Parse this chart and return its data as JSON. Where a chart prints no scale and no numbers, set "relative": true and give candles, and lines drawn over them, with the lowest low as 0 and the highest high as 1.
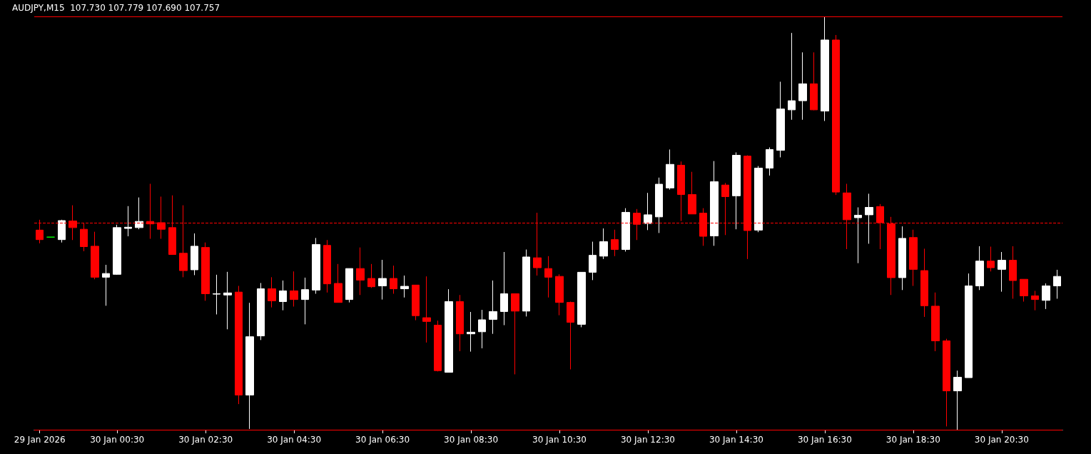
{
  "chart_data": {
    "type": "candlestick",
    "title": "AUDJPY,M15  107.730 107.779 107.690 107.757",
    "relative": true,
    "categories": [
      "29 Jan 2026",
      null,
      null,
      null,
      null,
      null,
      null,
      "30 Jan 00:30",
      null,
      null,
      null,
      null,
      null,
      null,
      null,
      "30 Jan 02:30",
      null,
      null,
      null,
      null,
      null,
      null,
      null,
      "30 Jan 04:30",
      null,
      null,
      null,
      null,
      null,
      null,
      null,
      "30 Jan 06:30",
      null,
      null,
      null,
      null,
      null,
      null,
      null,
      "30 Jan 08:30",
      null,
      null,
      null,
      null,
      null,
      null,
      null,
      "30 Jan 10:30",
      null,
      null,
      null,
      null,
      null,
      null,
      null,
      "30 Jan 12:30",
      null,
      null,
      null,
      null,
      null,
      null,
      null,
      "30 Jan 14:30",
      null,
      null,
      null,
      null,
      null,
      null,
      null,
      "30 Jan 16:30",
      null,
      null,
      null,
      null,
      null,
      null,
      null,
      "30 Jan 18:30",
      null,
      null,
      null,
      null,
      null,
      null,
      null,
      "30 Jan 20:30",
      null,
      null,
      null,
      null,
      null
    ],
    "ohlc": [
      [
        0.483,
        0.508,
        0.451,
        0.46
      ],
      [
        0.466,
        0.466,
        0.466,
        0.466
      ],
      [
        0.46,
        0.508,
        0.453,
        0.506
      ],
      [
        0.505,
        0.543,
        0.459,
        0.489
      ],
      [
        0.485,
        0.501,
        0.432,
        0.443
      ],
      [
        0.444,
        0.479,
        0.364,
        0.369
      ],
      [
        0.369,
        0.399,
        0.3,
        0.378
      ],
      [
        0.376,
        0.496,
        0.375,
        0.489
      ],
      [
        0.487,
        0.541,
        0.468,
        0.49
      ],
      [
        0.489,
        0.562,
        0.485,
        0.504
      ],
      [
        0.504,
        0.595,
        0.462,
        0.498
      ],
      [
        0.501,
        0.564,
        0.462,
        0.485
      ],
      [
        0.489,
        0.567,
        0.424,
        0.424
      ],
      [
        0.427,
        0.543,
        0.369,
        0.385
      ],
      [
        0.387,
        0.475,
        0.374,
        0.444
      ],
      [
        0.441,
        0.453,
        0.312,
        0.329
      ],
      [
        0.328,
        0.375,
        0.279,
        0.329
      ],
      [
        0.326,
        0.382,
        0.243,
        0.331
      ],
      [
        0.333,
        0.348,
        0.062,
        0.084
      ],
      [
        0.084,
        0.307,
        0.002,
        0.225
      ],
      [
        0.227,
        0.355,
        0.217,
        0.341
      ],
      [
        0.341,
        0.369,
        0.296,
        0.312
      ],
      [
        0.31,
        0.361,
        0.289,
        0.336
      ],
      [
        0.336,
        0.383,
        0.298,
        0.315
      ],
      [
        0.315,
        0.368,
        0.255,
        0.339
      ],
      [
        0.338,
        0.464,
        0.329,
        0.448
      ],
      [
        0.446,
        0.459,
        0.332,
        0.353
      ],
      [
        0.354,
        0.401,
        0.308,
        0.308
      ],
      [
        0.315,
        0.39,
        0.308,
        0.39
      ],
      [
        0.39,
        0.441,
        0.326,
        0.362
      ],
      [
        0.366,
        0.401,
        0.343,
        0.346
      ],
      [
        0.348,
        0.411,
        0.315,
        0.366
      ],
      [
        0.366,
        0.397,
        0.329,
        0.341
      ],
      [
        0.341,
        0.373,
        0.32,
        0.347
      ],
      [
        0.35,
        0.35,
        0.265,
        0.276
      ],
      [
        0.271,
        0.371,
        0.211,
        0.262
      ],
      [
        0.253,
        0.264,
        0.141,
        0.143
      ],
      [
        0.139,
        0.34,
        0.139,
        0.31
      ],
      [
        0.31,
        0.326,
        0.19,
        0.232
      ],
      [
        0.232,
        0.285,
        0.189,
        0.236
      ],
      [
        0.237,
        0.29,
        0.197,
        0.266
      ],
      [
        0.267,
        0.361,
        0.232,
        0.286
      ],
      [
        0.286,
        0.43,
        0.253,
        0.329
      ],
      [
        0.329,
        0.329,
        0.134,
        0.287
      ],
      [
        0.287,
        0.436,
        0.274,
        0.418
      ],
      [
        0.416,
        0.525,
        0.373,
        0.392
      ],
      [
        0.39,
        0.42,
        0.32,
        0.369
      ],
      [
        0.371,
        0.376,
        0.277,
        0.308
      ],
      [
        0.308,
        0.31,
        0.146,
        0.26
      ],
      [
        0.255,
        0.381,
        0.248,
        0.381
      ],
      [
        0.381,
        0.455,
        0.362,
        0.422
      ],
      [
        0.42,
        0.487,
        0.413,
        0.455
      ],
      [
        0.46,
        0.484,
        0.42,
        0.436
      ],
      [
        0.436,
        0.536,
        0.431,
        0.526
      ],
      [
        0.524,
        0.534,
        0.459,
        0.497
      ],
      [
        0.499,
        0.573,
        0.483,
        0.52
      ],
      [
        0.515,
        0.61,
        0.476,
        0.594
      ],
      [
        0.585,
        0.678,
        0.581,
        0.642
      ],
      [
        0.64,
        0.649,
        0.505,
        0.569
      ],
      [
        0.569,
        0.624,
        0.522,
        0.522
      ],
      [
        0.524,
        0.536,
        0.445,
        0.468
      ],
      [
        0.469,
        0.65,
        0.445,
        0.6
      ],
      [
        0.592,
        0.597,
        0.471,
        0.564
      ],
      [
        0.566,
        0.671,
        0.485,
        0.664
      ],
      [
        0.662,
        0.664,
        0.413,
        0.482
      ],
      [
        0.483,
        0.638,
        0.478,
        0.633
      ],
      [
        0.633,
        0.683,
        0.615,
        0.678
      ],
      [
        0.676,
        0.842,
        0.659,
        0.776
      ],
      [
        0.774,
        0.96,
        0.75,
        0.796
      ],
      [
        0.796,
        0.913,
        0.75,
        0.837
      ],
      [
        0.837,
        0.913,
        0.773,
        0.774
      ],
      [
        0.771,
        1,
        0.747,
        0.943
      ],
      [
        0.943,
        0.955,
        0.568,
        0.575
      ],
      [
        0.573,
        0.595,
        0.437,
        0.508
      ],
      [
        0.513,
        0.538,
        0.403,
        0.519
      ],
      [
        0.52,
        0.571,
        0.45,
        0.538
      ],
      [
        0.54,
        0.546,
        0.437,
        0.501
      ],
      [
        0.498,
        0.515,
        0.326,
        0.368
      ],
      [
        0.368,
        0.492,
        0.338,
        0.463
      ],
      [
        0.465,
        0.484,
        0.348,
        0.388
      ],
      [
        0.385,
        0.438,
        0.273,
        0.3
      ],
      [
        0.299,
        0.332,
        0.19,
        0.215
      ],
      [
        0.215,
        0.22,
        0.008,
        0.094
      ],
      [
        0.094,
        0.143,
        0,
        0.127
      ],
      [
        0.126,
        0.378,
        0.126,
        0.348
      ],
      [
        0.348,
        0.444,
        0.338,
        0.408
      ],
      [
        0.408,
        0.443,
        0.383,
        0.392
      ],
      [
        0.388,
        0.43,
        0.334,
        0.41
      ],
      [
        0.41,
        0.444,
        0.317,
        0.361
      ],
      [
        0.364,
        0.364,
        0.31,
        0.324
      ],
      [
        0.324,
        0.336,
        0.289,
        0.315
      ],
      [
        0.313,
        0.354,
        0.292,
        0.348
      ],
      [
        0.348,
        0.387,
        0.317,
        0.371
      ]
    ],
    "colors": [
      "#ff0000",
      "#00ff00",
      "#ffffff",
      "#ff0000",
      "#ff0000",
      "#ff0000",
      "#ffffff",
      "#ffffff",
      "#ffffff",
      "#ffffff",
      "#ff0000",
      "#ff0000",
      "#ff0000",
      "#ff0000",
      "#ffffff",
      "#ff0000",
      "#ffffff",
      "#ffffff",
      "#ff0000",
      "#ffffff",
      "#ffffff",
      "#ff0000",
      "#ffffff",
      "#ff0000",
      "#ffffff",
      "#ffffff",
      "#ff0000",
      "#ff0000",
      "#ffffff",
      "#ff0000",
      "#ff0000",
      "#ffffff",
      "#ff0000",
      "#ffffff",
      "#ff0000",
      "#ff0000",
      "#ff0000",
      "#ffffff",
      "#ff0000",
      "#ffffff",
      "#ffffff",
      "#ffffff",
      "#ffffff",
      "#ff0000",
      "#ffffff",
      "#ff0000",
      "#ff0000",
      "#ff0000",
      "#ff0000",
      "#ffffff",
      "#ffffff",
      "#ffffff",
      "#ff0000",
      "#ffffff",
      "#ff0000",
      "#ffffff",
      "#ffffff",
      "#ffffff",
      "#ff0000",
      "#ff0000",
      "#ff0000",
      "#ffffff",
      "#ff0000",
      "#ffffff",
      "#ff0000",
      "#ffffff",
      "#ffffff",
      "#ffffff",
      "#ffffff",
      "#ffffff",
      "#ff0000",
      "#ffffff",
      "#ff0000",
      "#ff0000",
      "#ffffff",
      "#ffffff",
      "#ff0000",
      "#ff0000",
      "#ffffff",
      "#ff0000",
      "#ff0000",
      "#ff0000",
      "#ff0000",
      "#ffffff",
      "#ffffff",
      "#ffffff",
      "#ff0000",
      "#ffffff",
      "#ff0000",
      "#ff0000",
      "#ff0000",
      "#ffffff",
      "#ffffff"
    ],
    "ref_lines": [
      {
        "axis": "y",
        "value": 1,
        "color": "#ff0000"
      },
      {
        "axis": "y",
        "value": 0,
        "color": "#ff0000"
      },
      {
        "axis": "y",
        "value": 0.5,
        "color": "#ff0000",
        "line_style": "dashed"
      }
    ],
    "grid": false
  }
}
